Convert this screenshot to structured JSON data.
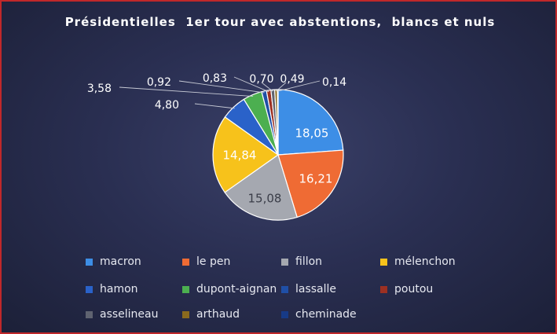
{
  "chart_data": {
    "type": "pie",
    "title": "Présidentielles  1er tour avec abstentions,  blancs et nuls",
    "slices": [
      {
        "label": "macron",
        "value": 18.05,
        "value_label": "18,05",
        "color": "#3d8ee6"
      },
      {
        "label": "le pen",
        "value": 16.21,
        "value_label": "16,21",
        "color": "#ef6b34"
      },
      {
        "label": "fillon",
        "value": 15.08,
        "value_label": "15,08",
        "color": "#a5a8b0"
      },
      {
        "label": "mélenchon",
        "value": 14.84,
        "value_label": "14,84",
        "color": "#f7c21b"
      },
      {
        "label": "hamon",
        "value": 4.8,
        "value_label": "4,80",
        "color": "#2a62c9"
      },
      {
        "label": "dupont-aignan",
        "value": 3.58,
        "value_label": "3,58",
        "color": "#4caf50"
      },
      {
        "label": "lassalle",
        "value": 0.92,
        "value_label": "0,92",
        "color": "#1f4fa6"
      },
      {
        "label": "poutou",
        "value": 0.83,
        "value_label": "0,83",
        "color": "#9c3022"
      },
      {
        "label": "asselineau",
        "value": 0.7,
        "value_label": "0,70",
        "color": "#5f6370"
      },
      {
        "label": "arthaud",
        "value": 0.49,
        "value_label": "0,49",
        "color": "#8a6a1e"
      },
      {
        "label": "cheminade",
        "value": 0.14,
        "value_label": "0,14",
        "color": "#173a86"
      }
    ],
    "legend_position": "bottom"
  }
}
